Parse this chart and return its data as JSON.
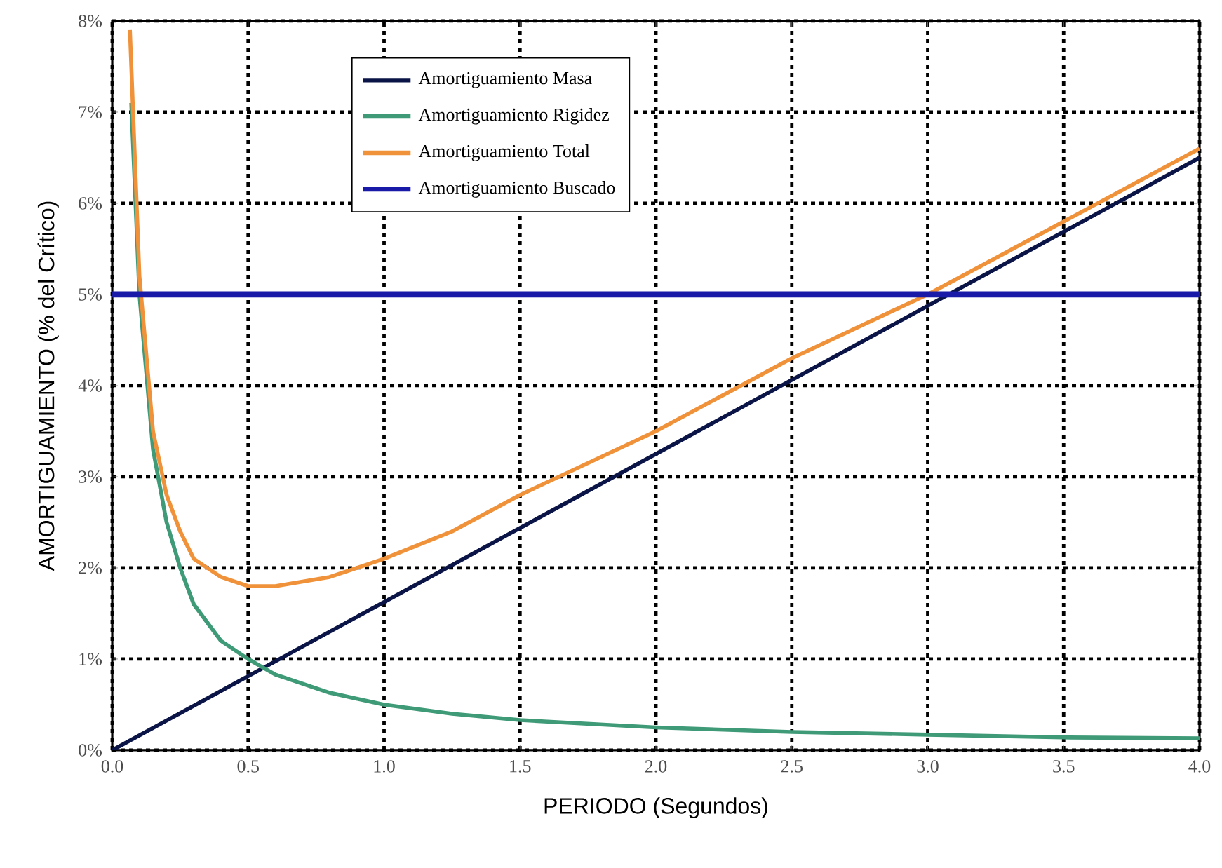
{
  "chart_data": {
    "type": "line",
    "xlabel": "PERIODO (Segundos)",
    "ylabel": "AMORTIGUAMIENTO (% del Crítico)",
    "xlim": [
      0,
      4
    ],
    "ylim": [
      0,
      8
    ],
    "xticks": [
      {
        "value": 0,
        "label": "0.0"
      },
      {
        "value": 0.5,
        "label": "0.5"
      },
      {
        "value": 1,
        "label": "1.0"
      },
      {
        "value": 1.5,
        "label": "1.5"
      },
      {
        "value": 2,
        "label": "2.0"
      },
      {
        "value": 2.5,
        "label": "2.5"
      },
      {
        "value": 3,
        "label": "3.0"
      },
      {
        "value": 3.5,
        "label": "3.5"
      },
      {
        "value": 4,
        "label": "4.0"
      }
    ],
    "yticks": [
      {
        "value": 0,
        "label": "0%"
      },
      {
        "value": 1,
        "label": "1%"
      },
      {
        "value": 2,
        "label": "2%"
      },
      {
        "value": 3,
        "label": "3%"
      },
      {
        "value": 4,
        "label": "4%"
      },
      {
        "value": 5,
        "label": "5%"
      },
      {
        "value": 6,
        "label": "6%"
      },
      {
        "value": 7,
        "label": "7%"
      },
      {
        "value": 8,
        "label": "8%"
      }
    ],
    "grid": true,
    "legend": "top left",
    "marker": "none",
    "line_style": "solid",
    "series": [
      {
        "name": "Amortiguamiento Masa",
        "color": "#0a1446",
        "x": [
          0,
          4
        ],
        "values": [
          0,
          6.5
        ]
      },
      {
        "name": "Amortiguamiento Rigidez",
        "color": "#3f9a78",
        "x": [
          0.07,
          0.1,
          0.15,
          0.2,
          0.25,
          0.3,
          0.4,
          0.5,
          0.6,
          0.8,
          1.0,
          1.25,
          1.5,
          2.0,
          2.5,
          3.0,
          3.5,
          4.0
        ],
        "values": [
          7.1,
          5.0,
          3.3,
          2.5,
          2.0,
          1.6,
          1.2,
          1.0,
          0.83,
          0.63,
          0.5,
          0.4,
          0.33,
          0.25,
          0.2,
          0.17,
          0.14,
          0.13
        ]
      },
      {
        "name": "Amortiguamiento Total",
        "color": "#f0923a",
        "x": [
          0.065,
          0.1,
          0.15,
          0.2,
          0.25,
          0.3,
          0.4,
          0.5,
          0.6,
          0.8,
          1.0,
          1.25,
          1.5,
          2.0,
          2.5,
          3.0,
          3.5,
          4.0
        ],
        "values": [
          7.9,
          5.2,
          3.5,
          2.8,
          2.4,
          2.1,
          1.9,
          1.8,
          1.8,
          1.9,
          2.1,
          2.4,
          2.8,
          3.5,
          4.3,
          5.0,
          5.8,
          6.6
        ]
      },
      {
        "name": "Amortiguamiento Buscado",
        "color": "#1a1aa8",
        "x": [
          0,
          4
        ],
        "values": [
          5,
          5
        ]
      }
    ]
  }
}
